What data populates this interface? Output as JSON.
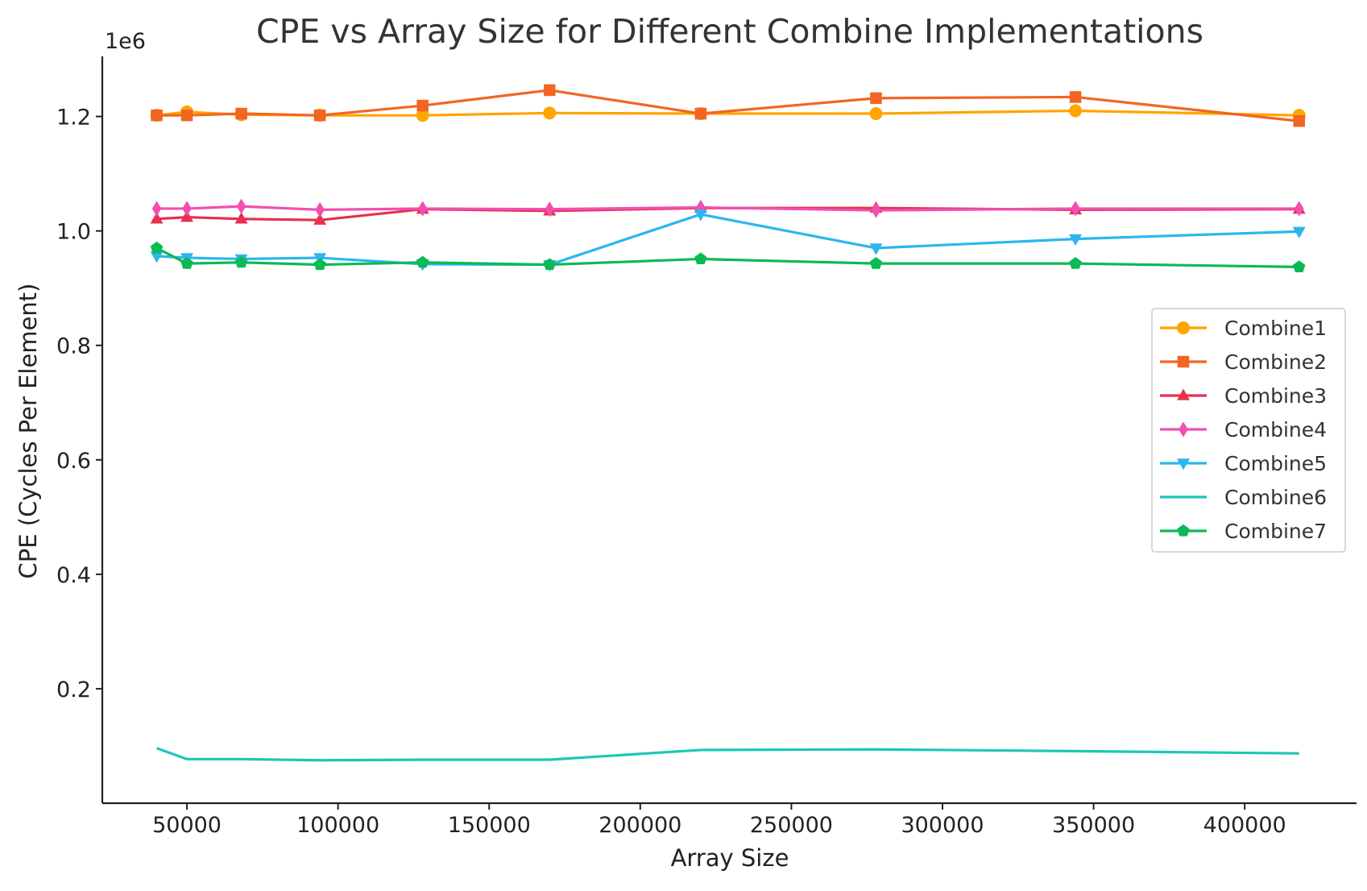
{
  "chart_data": {
    "type": "line",
    "title": "CPE vs Array Size for Different Combine Implementations",
    "xlabel": "Array Size",
    "ylabel": "CPE (Cycles Per Element)",
    "y_offset_label": "1e6",
    "xlim": [
      22000,
      437000
    ],
    "ylim": [
      0,
      1305000
    ],
    "x_ticks": [
      50000,
      100000,
      150000,
      200000,
      250000,
      300000,
      350000,
      400000
    ],
    "x_tick_labels": [
      "50000",
      "100000",
      "150000",
      "200000",
      "250000",
      "300000",
      "350000",
      "400000"
    ],
    "y_ticks": [
      200000,
      400000,
      600000,
      800000,
      1000000,
      1200000
    ],
    "y_tick_labels": [
      "0.2",
      "0.4",
      "0.6",
      "0.8",
      "1.0",
      "1.2"
    ],
    "grid": false,
    "legend_position": "center-right",
    "x": [
      40000,
      50000,
      68000,
      94000,
      128000,
      170000,
      220000,
      278000,
      344000,
      418000
    ],
    "series": [
      {
        "name": "Combine1",
        "color": "#FFA500",
        "marker": "circle",
        "values": [
          1202000,
          1208000,
          1203000,
          1202000,
          1202000,
          1206000,
          1205000,
          1205000,
          1210000,
          1202000
        ]
      },
      {
        "name": "Combine2",
        "color": "#F26522",
        "marker": "square",
        "values": [
          1202000,
          1202000,
          1205000,
          1202000,
          1219000,
          1246000,
          1205000,
          1232000,
          1234000,
          1192000
        ]
      },
      {
        "name": "Combine3",
        "color": "#E8304E",
        "marker": "triangle-up",
        "values": [
          1021000,
          1024000,
          1021000,
          1019000,
          1038000,
          1035000,
          1040000,
          1040000,
          1037000,
          1038000
        ]
      },
      {
        "name": "Combine4",
        "color": "#F24FB3",
        "marker": "diamond",
        "values": [
          1039000,
          1039000,
          1043000,
          1037000,
          1039000,
          1038000,
          1041000,
          1036000,
          1039000,
          1039000
        ]
      },
      {
        "name": "Combine5",
        "color": "#2BB6F0",
        "marker": "triangle-down",
        "values": [
          956000,
          953000,
          951000,
          953000,
          942000,
          941000,
          1029000,
          970000,
          986000,
          999000
        ]
      },
      {
        "name": "Combine6",
        "color": "#1CC7B8",
        "marker": "none",
        "values": [
          96000,
          77000,
          77000,
          75000,
          76000,
          76000,
          93000,
          94000,
          91000,
          87000
        ]
      },
      {
        "name": "Combine7",
        "color": "#0BBA55",
        "marker": "pentagon",
        "values": [
          970000,
          943000,
          945000,
          941000,
          945000,
          941000,
          951000,
          943000,
          943000,
          937000
        ]
      }
    ]
  }
}
